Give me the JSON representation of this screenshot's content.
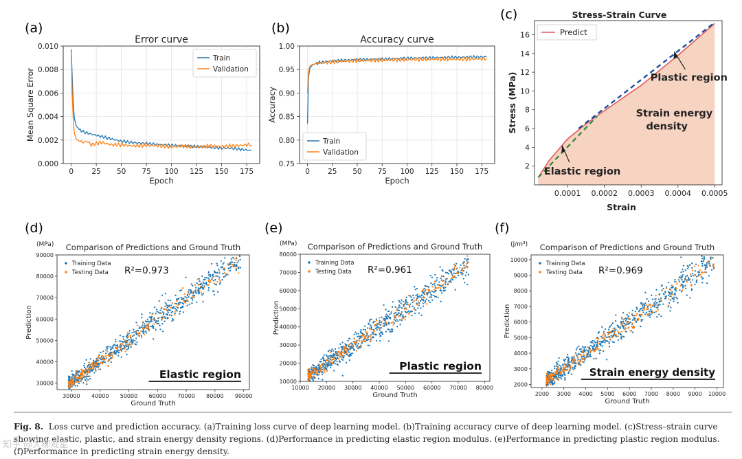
{
  "panel_letters": [
    "(a)",
    "(b)",
    "(c)",
    "(d)",
    "(e)",
    "(f)"
  ],
  "caption": {
    "label": "Fig. 8.",
    "text": "Loss curve and prediction accuracy. (a)Training loss curve of deep learning model. (b)Training accuracy curve of deep learning model. (c)Stress–strain curve showing elastic, plastic, and strain energy density regions. (d)Performance in predicting elastic region modulus. (e)Performance in predicting plastic region modulus. (f)Performance in predicting strain energy density."
  },
  "watermark": "知乎 @大柳观星",
  "colors": {
    "blue": "#1f77b4",
    "orange": "#ff7f0e",
    "predict": "#e05a5a",
    "fill": "#f7d3c2",
    "dash_blue": "#1f4fa0",
    "dash_green": "#3c8a3c"
  },
  "chart_data": [
    {
      "id": "a",
      "type": "line",
      "title": "Error curve",
      "xlabel": "Epoch",
      "ylabel": "Mean Square Error",
      "xlim": [
        -8,
        188
      ],
      "ylim": [
        0,
        0.01
      ],
      "xticks": [
        0,
        25,
        50,
        75,
        100,
        125,
        150,
        175
      ],
      "yticks": [
        0,
        0.002,
        0.004,
        0.006,
        0.008,
        0.01
      ],
      "ytick_labels": [
        "0.000",
        "0.002",
        "0.004",
        "0.006",
        "0.008",
        "0.010"
      ],
      "legend": [
        "Train",
        "Validation"
      ],
      "series": [
        {
          "name": "Train",
          "x": [
            0,
            1,
            2,
            3,
            5,
            8,
            12,
            16,
            20,
            25,
            30,
            40,
            50,
            60,
            75,
            90,
            100,
            110,
            125,
            140,
            150,
            160,
            170,
            175,
            180
          ],
          "y": [
            0.0097,
            0.0074,
            0.0052,
            0.0039,
            0.0032,
            0.0029,
            0.0027,
            0.0026,
            0.0025,
            0.0024,
            0.0023,
            0.0021,
            0.0019,
            0.0018,
            0.0017,
            0.0016,
            0.00155,
            0.0015,
            0.00145,
            0.0014,
            0.0013,
            0.0013,
            0.0012,
            0.00115,
            0.0011
          ]
        },
        {
          "name": "Validation",
          "x": [
            0,
            1,
            2,
            3,
            5,
            8,
            12,
            16,
            20,
            25,
            30,
            40,
            50,
            60,
            75,
            90,
            100,
            110,
            125,
            140,
            150,
            160,
            170,
            175,
            180
          ],
          "y": [
            0.0095,
            0.0058,
            0.0038,
            0.0026,
            0.0021,
            0.0019,
            0.0018,
            0.0019,
            0.0016,
            0.0017,
            0.0018,
            0.0016,
            0.0016,
            0.0015,
            0.00155,
            0.0015,
            0.0014,
            0.0015,
            0.0014,
            0.0015,
            0.00145,
            0.0015,
            0.00155,
            0.0016,
            0.0016
          ]
        }
      ]
    },
    {
      "id": "b",
      "type": "line",
      "title": "Accuracy curve",
      "xlabel": "Epoch",
      "ylabel": "Accuracy",
      "xlim": [
        -8,
        188
      ],
      "ylim": [
        0.75,
        1.0
      ],
      "xticks": [
        0,
        25,
        50,
        75,
        100,
        125,
        150,
        175
      ],
      "yticks": [
        0.75,
        0.8,
        0.85,
        0.9,
        0.95,
        1.0
      ],
      "ytick_labels": [
        "0.75",
        "0.80",
        "0.85",
        "0.90",
        "0.95",
        "1.00"
      ],
      "legend": [
        "Train",
        "Validation"
      ],
      "series": [
        {
          "name": "Train",
          "x": [
            0,
            1,
            2,
            3,
            5,
            8,
            12,
            20,
            30,
            50,
            75,
            100,
            125,
            150,
            180
          ],
          "y": [
            0.835,
            0.93,
            0.95,
            0.955,
            0.96,
            0.962,
            0.965,
            0.967,
            0.969,
            0.971,
            0.972,
            0.974,
            0.975,
            0.976,
            0.977
          ]
        },
        {
          "name": "Validation",
          "x": [
            0,
            1,
            2,
            3,
            5,
            8,
            12,
            20,
            30,
            50,
            75,
            100,
            125,
            150,
            180
          ],
          "y": [
            0.9,
            0.945,
            0.955,
            0.958,
            0.961,
            0.962,
            0.964,
            0.965,
            0.967,
            0.969,
            0.97,
            0.971,
            0.972,
            0.972,
            0.973
          ]
        }
      ]
    },
    {
      "id": "c",
      "type": "area",
      "title": "Stress-Strain Curve",
      "xlabel": "Strain",
      "ylabel": "Stress (MPa)",
      "xlim": [
        1e-05,
        0.00052
      ],
      "ylim": [
        0,
        17.5
      ],
      "xticks": [
        0.0001,
        0.0002,
        0.0003,
        0.0004,
        0.0005
      ],
      "xtick_labels": [
        "0.0001",
        "0.0002",
        "0.0003",
        "0.0004",
        "0.0005"
      ],
      "yticks": [
        2,
        4,
        6,
        8,
        10,
        12,
        14,
        16
      ],
      "legend": [
        "Predict"
      ],
      "series": [
        {
          "name": "Predict",
          "x": [
            2e-05,
            5e-05,
            0.0001,
            0.00015,
            0.0002,
            0.0003,
            0.0004,
            0.0005
          ],
          "y": [
            0.8,
            2.6,
            4.9,
            6.5,
            7.9,
            10.6,
            13.8,
            17.2
          ]
        }
      ],
      "annotations": [
        {
          "text": "Plastic region",
          "x": 0.00043,
          "y": 11.1
        },
        {
          "text": "Strain energy",
          "x": 0.00039,
          "y": 7.3
        },
        {
          "text": "density",
          "x": 0.00037,
          "y": 5.9
        },
        {
          "text": "Elastic region",
          "x": 0.00014,
          "y": 1.1
        }
      ]
    },
    {
      "id": "d",
      "type": "scatter",
      "title": "Comparison of Predictions and Ground Truth",
      "unit": "(MPa)",
      "xlabel": "Ground Truth",
      "ylabel": "Prediction",
      "xlim": [
        25000,
        92000
      ],
      "ylim": [
        27000,
        90000
      ],
      "xticks": [
        30000,
        40000,
        50000,
        60000,
        70000,
        80000,
        90000
      ],
      "yticks": [
        30000,
        40000,
        50000,
        60000,
        70000,
        80000,
        90000
      ],
      "legend": [
        "Training Data",
        "Testing Data"
      ],
      "r2": "R²=0.973",
      "region_label": "Elastic region",
      "gt_range": [
        29000,
        89000
      ],
      "train_noise": 2800,
      "test_noise": 2200,
      "seed": 11
    },
    {
      "id": "e",
      "type": "scatter",
      "title": "Comparison of Predictions and Ground Truth",
      "unit": "(MPa)",
      "xlabel": "Ground Truth",
      "ylabel": "Prediction",
      "xlim": [
        10000,
        82000
      ],
      "ylim": [
        10000,
        80000
      ],
      "xticks": [
        10000,
        20000,
        30000,
        40000,
        50000,
        60000,
        70000,
        80000
      ],
      "yticks": [
        10000,
        20000,
        30000,
        40000,
        50000,
        60000,
        70000,
        80000
      ],
      "legend": [
        "Training Data",
        "Testing Data"
      ],
      "r2": "R²=0.961",
      "region_label": "Plastic region",
      "gt_range": [
        13000,
        74000
      ],
      "train_noise": 3500,
      "test_noise": 2800,
      "seed": 23
    },
    {
      "id": "f",
      "type": "scatter",
      "title": "Comparison of Predictions and Ground Truth",
      "unit": "(J/m³)",
      "xlabel": "Ground Truth",
      "ylabel": "Prediction",
      "xlim": [
        1500,
        10300
      ],
      "ylim": [
        1800,
        10300
      ],
      "xticks": [
        2000,
        3000,
        4000,
        5000,
        6000,
        7000,
        8000,
        9000,
        10000
      ],
      "yticks": [
        2000,
        3000,
        4000,
        5000,
        6000,
        7000,
        8000,
        9000,
        10000
      ],
      "legend": [
        "Training Data",
        "Testing Data"
      ],
      "r2": "R²=0.969",
      "region_label": "Strain energy density",
      "gt_range": [
        2200,
        9900
      ],
      "train_noise": 420,
      "test_noise": 330,
      "seed": 37
    }
  ]
}
